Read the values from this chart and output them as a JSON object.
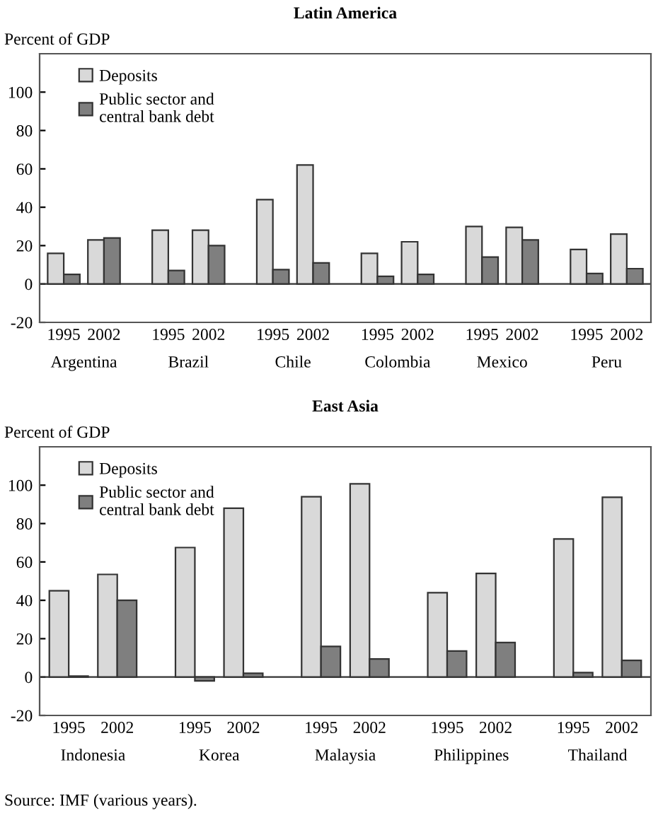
{
  "chart_data": [
    {
      "type": "bar",
      "title": "Latin America",
      "ylabel": "Percent of GDP",
      "categories": [
        "1995",
        "2002",
        "1995",
        "2002",
        "1995",
        "2002",
        "1995",
        "2002",
        "1995",
        "2002",
        "1995",
        "2002"
      ],
      "series": [
        {
          "name": "Deposits",
          "color": "#d9d9d9",
          "values": [
            16,
            23,
            28,
            28,
            44,
            62,
            16,
            22,
            30,
            29.5,
            18,
            26
          ]
        },
        {
          "name": "Public sector and\ncentral bank debt",
          "color": "#7f7f7f",
          "values": [
            5,
            24,
            7,
            20,
            7.5,
            11,
            4,
            5,
            14,
            23,
            5.5,
            8
          ]
        }
      ],
      "annotations": [
        "Argentina",
        "Brazil",
        "Chile",
        "Colombia",
        "Mexico",
        "Peru"
      ],
      "ylim": [
        -20,
        120
      ],
      "yticks": [
        -20,
        0,
        20,
        40,
        60,
        80,
        100
      ],
      "ref_lines": [
        {
          "axis": "y",
          "value": 0
        }
      ],
      "grid": false,
      "legend": "top left"
    },
    {
      "type": "bar",
      "title": "East Asia",
      "ylabel": "Percent of GDP",
      "categories": [
        "1995",
        "2002",
        "1995",
        "2002",
        "1995",
        "2002",
        "1995",
        "2002",
        "1995",
        "2002"
      ],
      "series": [
        {
          "name": "Deposits",
          "color": "#d9d9d9",
          "values": [
            45,
            53.5,
            67.5,
            88,
            94,
            100.7,
            44,
            54,
            72,
            93.7
          ]
        },
        {
          "name": "Public sector and\ncentral bank debt",
          "color": "#7f7f7f",
          "values": [
            0.5,
            40,
            -2,
            2,
            16,
            9.4,
            13.6,
            18,
            2.3,
            8.7
          ]
        }
      ],
      "annotations": [
        "Indonesia",
        "Korea",
        "Malaysia",
        "Philippines",
        "Thailand",
        "Source: IMF (various years)."
      ],
      "ylim": [
        -20,
        120
      ],
      "yticks": [
        -20,
        0,
        20,
        40,
        60,
        80,
        100
      ],
      "ref_lines": [
        {
          "axis": "y",
          "value": 0
        }
      ],
      "grid": false,
      "legend": "top left"
    }
  ]
}
